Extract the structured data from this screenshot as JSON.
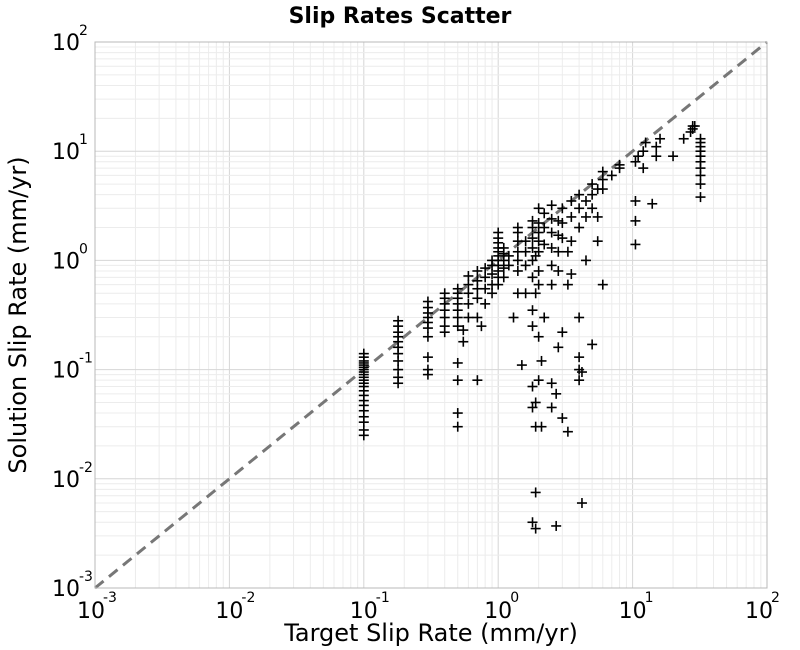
{
  "chart_data": {
    "type": "scatter",
    "title": "Slip Rates Scatter",
    "xlabel": "Target Slip Rate (mm/yr)",
    "ylabel": "Solution Slip Rate (mm/yr)",
    "xscale": "log",
    "yscale": "log",
    "xlim": [
      0.001,
      100
    ],
    "ylim": [
      0.001,
      100
    ],
    "grid": true,
    "x_ticks": [
      {
        "base": "10",
        "exp": "-3"
      },
      {
        "base": "10",
        "exp": "-2"
      },
      {
        "base": "10",
        "exp": "-1"
      },
      {
        "base": "10",
        "exp": "0"
      },
      {
        "base": "10",
        "exp": "1"
      },
      {
        "base": "10",
        "exp": "2"
      }
    ],
    "y_ticks": [
      {
        "base": "10",
        "exp": "-3"
      },
      {
        "base": "10",
        "exp": "-2"
      },
      {
        "base": "10",
        "exp": "-1"
      },
      {
        "base": "10",
        "exp": "0"
      },
      {
        "base": "10",
        "exp": "1"
      },
      {
        "base": "10",
        "exp": "2"
      }
    ],
    "reference_line": {
      "style": "dashed",
      "color": "#777777",
      "relation": "y = x"
    },
    "marker": {
      "symbol": "+",
      "color": "#000000"
    },
    "points": [
      [
        0.1,
        0.025
      ],
      [
        0.1,
        0.028
      ],
      [
        0.1,
        0.033
      ],
      [
        0.1,
        0.037
      ],
      [
        0.1,
        0.042
      ],
      [
        0.1,
        0.047
      ],
      [
        0.1,
        0.052
      ],
      [
        0.1,
        0.058
      ],
      [
        0.1,
        0.064
      ],
      [
        0.1,
        0.07
      ],
      [
        0.1,
        0.075
      ],
      [
        0.1,
        0.08
      ],
      [
        0.1,
        0.085
      ],
      [
        0.1,
        0.09
      ],
      [
        0.1,
        0.095
      ],
      [
        0.1,
        0.1
      ],
      [
        0.1,
        0.105
      ],
      [
        0.1,
        0.11
      ],
      [
        0.1,
        0.115
      ],
      [
        0.1,
        0.12
      ],
      [
        0.1,
        0.13
      ],
      [
        0.1,
        0.14
      ],
      [
        0.18,
        0.075
      ],
      [
        0.18,
        0.085
      ],
      [
        0.18,
        0.1
      ],
      [
        0.18,
        0.12
      ],
      [
        0.18,
        0.14
      ],
      [
        0.18,
        0.16
      ],
      [
        0.18,
        0.18
      ],
      [
        0.18,
        0.2
      ],
      [
        0.18,
        0.22
      ],
      [
        0.18,
        0.25
      ],
      [
        0.18,
        0.28
      ],
      [
        0.3,
        0.09
      ],
      [
        0.3,
        0.1
      ],
      [
        0.3,
        0.13
      ],
      [
        0.3,
        0.2
      ],
      [
        0.3,
        0.24
      ],
      [
        0.3,
        0.27
      ],
      [
        0.3,
        0.3
      ],
      [
        0.3,
        0.33
      ],
      [
        0.3,
        0.37
      ],
      [
        0.3,
        0.42
      ],
      [
        0.4,
        0.22
      ],
      [
        0.4,
        0.25
      ],
      [
        0.4,
        0.3
      ],
      [
        0.4,
        0.35
      ],
      [
        0.4,
        0.4
      ],
      [
        0.4,
        0.45
      ],
      [
        0.4,
        0.5
      ],
      [
        0.5,
        0.03
      ],
      [
        0.5,
        0.04
      ],
      [
        0.5,
        0.08
      ],
      [
        0.5,
        0.115
      ],
      [
        0.5,
        0.25
      ],
      [
        0.5,
        0.3
      ],
      [
        0.5,
        0.35
      ],
      [
        0.5,
        0.4
      ],
      [
        0.5,
        0.45
      ],
      [
        0.5,
        0.5
      ],
      [
        0.5,
        0.55
      ],
      [
        0.55,
        0.18
      ],
      [
        0.55,
        0.23
      ],
      [
        0.6,
        0.3
      ],
      [
        0.6,
        0.4
      ],
      [
        0.6,
        0.5
      ],
      [
        0.6,
        0.6
      ],
      [
        0.6,
        0.72
      ],
      [
        0.7,
        0.08
      ],
      [
        0.7,
        0.3
      ],
      [
        0.7,
        0.45
      ],
      [
        0.7,
        0.55
      ],
      [
        0.7,
        0.65
      ],
      [
        0.7,
        0.8
      ],
      [
        0.75,
        0.25
      ],
      [
        0.8,
        0.4
      ],
      [
        0.8,
        0.55
      ],
      [
        0.8,
        0.7
      ],
      [
        0.8,
        0.85
      ],
      [
        0.9,
        0.5
      ],
      [
        0.9,
        0.6
      ],
      [
        0.9,
        0.75
      ],
      [
        0.9,
        0.9
      ],
      [
        0.9,
        1.0
      ],
      [
        1.0,
        0.6
      ],
      [
        1.0,
        0.7
      ],
      [
        1.0,
        0.8
      ],
      [
        1.0,
        0.9
      ],
      [
        1.0,
        1.0
      ],
      [
        1.0,
        1.1
      ],
      [
        1.0,
        1.2
      ],
      [
        1.0,
        1.3
      ],
      [
        1.0,
        1.45
      ],
      [
        1.0,
        1.6
      ],
      [
        1.0,
        1.8
      ],
      [
        1.1,
        0.7
      ],
      [
        1.1,
        0.85
      ],
      [
        1.1,
        1.0
      ],
      [
        1.1,
        1.15
      ],
      [
        1.1,
        1.3
      ],
      [
        1.2,
        0.9
      ],
      [
        1.2,
        1.1
      ],
      [
        1.3,
        0.3
      ],
      [
        1.4,
        0.5
      ],
      [
        1.4,
        0.8
      ],
      [
        1.4,
        1.2
      ],
      [
        1.4,
        1.5
      ],
      [
        1.4,
        1.8
      ],
      [
        1.4,
        2.0
      ],
      [
        1.4,
        1.0
      ],
      [
        1.5,
        0.11
      ],
      [
        1.6,
        0.5
      ],
      [
        1.6,
        0.9
      ],
      [
        1.6,
        1.2
      ],
      [
        1.6,
        1.5
      ],
      [
        1.8,
        0.004
      ],
      [
        1.8,
        0.045
      ],
      [
        1.8,
        0.07
      ],
      [
        1.8,
        0.25
      ],
      [
        1.8,
        0.35
      ],
      [
        1.8,
        0.7
      ],
      [
        1.8,
        1.0
      ],
      [
        1.8,
        1.3
      ],
      [
        1.8,
        1.6
      ],
      [
        1.8,
        2.0
      ],
      [
        1.8,
        2.3
      ],
      [
        1.9,
        0.0075
      ],
      [
        1.9,
        0.0035
      ],
      [
        1.9,
        0.03
      ],
      [
        1.9,
        0.05
      ],
      [
        1.9,
        0.5
      ],
      [
        1.9,
        1.1
      ],
      [
        2.0,
        0.08
      ],
      [
        2.0,
        0.2
      ],
      [
        2.0,
        0.6
      ],
      [
        2.0,
        0.8
      ],
      [
        2.0,
        1.2
      ],
      [
        2.0,
        1.5
      ],
      [
        2.0,
        1.8
      ],
      [
        2.0,
        2.2
      ],
      [
        2.0,
        3.0
      ],
      [
        2.1,
        0.03
      ],
      [
        2.1,
        0.12
      ],
      [
        2.2,
        0.3
      ],
      [
        2.2,
        1.4
      ],
      [
        2.2,
        2.0
      ],
      [
        2.2,
        2.7
      ],
      [
        2.5,
        0.045
      ],
      [
        2.5,
        0.075
      ],
      [
        2.5,
        0.6
      ],
      [
        2.5,
        0.9
      ],
      [
        2.5,
        1.3
      ],
      [
        2.5,
        1.8
      ],
      [
        2.5,
        2.4
      ],
      [
        2.5,
        3.2
      ],
      [
        2.7,
        0.0037
      ],
      [
        2.7,
        0.06
      ],
      [
        2.8,
        0.16
      ],
      [
        2.8,
        0.8
      ],
      [
        2.8,
        1.2
      ],
      [
        2.8,
        1.7
      ],
      [
        2.8,
        2.3
      ],
      [
        3.0,
        0.036
      ],
      [
        3.0,
        0.22
      ],
      [
        3.0,
        1.6
      ],
      [
        3.0,
        2.2
      ],
      [
        3.0,
        3.0
      ],
      [
        3.3,
        0.027
      ],
      [
        3.3,
        0.6
      ],
      [
        3.3,
        1.2
      ],
      [
        3.5,
        0.75
      ],
      [
        3.5,
        1.5
      ],
      [
        3.5,
        2.5
      ],
      [
        3.5,
        3.5
      ],
      [
        4.0,
        0.08
      ],
      [
        4.0,
        0.1
      ],
      [
        4.0,
        0.13
      ],
      [
        4.0,
        0.3
      ],
      [
        4.0,
        2.0
      ],
      [
        4.0,
        3.0
      ],
      [
        4.0,
        4.0
      ],
      [
        4.2,
        0.006
      ],
      [
        4.2,
        0.095
      ],
      [
        4.5,
        1.0
      ],
      [
        4.5,
        2.5
      ],
      [
        4.5,
        3.5
      ],
      [
        5.0,
        0.17
      ],
      [
        5.0,
        3.0
      ],
      [
        5.0,
        4.0
      ],
      [
        5.0,
        5.0
      ],
      [
        5.5,
        1.5
      ],
      [
        5.5,
        2.5
      ],
      [
        5.5,
        4.5
      ],
      [
        6.0,
        0.6
      ],
      [
        6.0,
        4.5
      ],
      [
        6.0,
        5.5
      ],
      [
        6.0,
        6.5
      ],
      [
        7.0,
        6.0
      ],
      [
        8.0,
        7.0
      ],
      [
        8.0,
        7.5
      ],
      [
        10.5,
        1.4
      ],
      [
        10.5,
        2.3
      ],
      [
        10.5,
        3.5
      ],
      [
        10.5,
        8.0
      ],
      [
        11.0,
        9.0
      ],
      [
        12.0,
        7.0
      ],
      [
        12.0,
        10.0
      ],
      [
        12.5,
        12.0
      ],
      [
        14.0,
        3.3
      ],
      [
        15.0,
        9.0
      ],
      [
        15.0,
        11.0
      ],
      [
        16.0,
        13.0
      ],
      [
        20.0,
        9.0
      ],
      [
        24.0,
        13.0
      ],
      [
        27.0,
        15.0
      ],
      [
        28.0,
        16.0
      ],
      [
        28.0,
        17.0
      ],
      [
        29.0,
        17.0
      ],
      [
        32.0,
        3.8
      ],
      [
        32.0,
        5.0
      ],
      [
        32.0,
        6.0
      ],
      [
        32.0,
        7.0
      ],
      [
        32.0,
        8.0
      ],
      [
        32.0,
        9.0
      ],
      [
        32.0,
        10.0
      ],
      [
        32.0,
        11.0
      ],
      [
        32.0,
        12.0
      ],
      [
        32.0,
        13.0
      ]
    ]
  }
}
